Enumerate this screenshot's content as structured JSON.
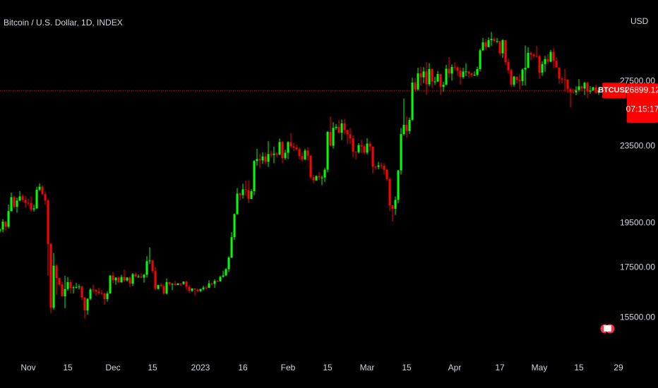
{
  "chart_data": {
    "type": "candlestick",
    "title": "Bitcoin / U.S. Dollar, 1D, INDEX",
    "currency": "USD",
    "symbol": "BTCUSD",
    "countdown": "07:15:17",
    "up_color": "#00ff00",
    "down_color": "#ff0000",
    "log_scale": true,
    "grid": false,
    "ylim": [
      14000,
      33500
    ],
    "yticks": [
      {
        "value": 15500,
        "label": "15500.00"
      },
      {
        "value": 17500,
        "label": "17500.00"
      },
      {
        "value": 19500,
        "label": "19500.00"
      },
      {
        "value": 23500,
        "label": "23500.00"
      },
      {
        "value": 27500,
        "label": "27500.00"
      }
    ],
    "xlim": [
      "2022-10-22",
      "2023-05-23"
    ],
    "xticks": [
      {
        "value": "2022-11-01",
        "label": "Nov"
      },
      {
        "value": "2022-11-15",
        "label": "15"
      },
      {
        "value": "2022-12-01",
        "label": "Dec"
      },
      {
        "value": "2022-12-15",
        "label": "15"
      },
      {
        "value": "2023-01-01",
        "label": "2023"
      },
      {
        "value": "2023-01-16",
        "label": "16"
      },
      {
        "value": "2023-02-01",
        "label": "Feb"
      },
      {
        "value": "2023-02-15",
        "label": "15"
      },
      {
        "value": "2023-03-01",
        "label": "Mar"
      },
      {
        "value": "2023-03-15",
        "label": "15"
      },
      {
        "value": "2023-04-01",
        "label": "Apr"
      },
      {
        "value": "2023-04-17",
        "label": "17"
      },
      {
        "value": "2023-05-01",
        "label": "May"
      },
      {
        "value": "2023-05-15",
        "label": "15"
      },
      {
        "value": "2023-05-29",
        "label": "29"
      }
    ],
    "x": [
      "2022-10-22",
      "2022-10-23",
      "2022-10-24",
      "2022-10-25",
      "2022-10-26",
      "2022-10-27",
      "2022-10-28",
      "2022-10-29",
      "2022-10-30",
      "2022-10-31",
      "2022-11-01",
      "2022-11-02",
      "2022-11-03",
      "2022-11-04",
      "2022-11-05",
      "2022-11-06",
      "2022-11-07",
      "2022-11-08",
      "2022-11-09",
      "2022-11-10",
      "2022-11-11",
      "2022-11-12",
      "2022-11-13",
      "2022-11-14",
      "2022-11-15",
      "2022-11-16",
      "2022-11-17",
      "2022-11-18",
      "2022-11-19",
      "2022-11-20",
      "2022-11-21",
      "2022-11-22",
      "2022-11-23",
      "2022-11-24",
      "2022-11-25",
      "2022-11-26",
      "2022-11-27",
      "2022-11-28",
      "2022-11-29",
      "2022-11-30",
      "2022-12-01",
      "2022-12-02",
      "2022-12-03",
      "2022-12-04",
      "2022-12-05",
      "2022-12-06",
      "2022-12-07",
      "2022-12-08",
      "2022-12-09",
      "2022-12-10",
      "2022-12-11",
      "2022-12-12",
      "2022-12-13",
      "2022-12-14",
      "2022-12-15",
      "2022-12-16",
      "2022-12-17",
      "2022-12-18",
      "2022-12-19",
      "2022-12-20",
      "2022-12-21",
      "2022-12-22",
      "2022-12-23",
      "2022-12-24",
      "2022-12-25",
      "2022-12-26",
      "2022-12-27",
      "2022-12-28",
      "2022-12-29",
      "2022-12-30",
      "2022-12-31",
      "2023-01-01",
      "2023-01-02",
      "2023-01-03",
      "2023-01-04",
      "2023-01-05",
      "2023-01-06",
      "2023-01-07",
      "2023-01-08",
      "2023-01-09",
      "2023-01-10",
      "2023-01-11",
      "2023-01-12",
      "2023-01-13",
      "2023-01-14",
      "2023-01-15",
      "2023-01-16",
      "2023-01-17",
      "2023-01-18",
      "2023-01-19",
      "2023-01-20",
      "2023-01-21",
      "2023-01-22",
      "2023-01-23",
      "2023-01-24",
      "2023-01-25",
      "2023-01-26",
      "2023-01-27",
      "2023-01-28",
      "2023-01-29",
      "2023-01-30",
      "2023-01-31",
      "2023-02-01",
      "2023-02-02",
      "2023-02-03",
      "2023-02-04",
      "2023-02-05",
      "2023-02-06",
      "2023-02-07",
      "2023-02-08",
      "2023-02-09",
      "2023-02-10",
      "2023-02-11",
      "2023-02-12",
      "2023-02-13",
      "2023-02-14",
      "2023-02-15",
      "2023-02-16",
      "2023-02-17",
      "2023-02-18",
      "2023-02-19",
      "2023-02-20",
      "2023-02-21",
      "2023-02-22",
      "2023-02-23",
      "2023-02-24",
      "2023-02-25",
      "2023-02-26",
      "2023-02-27",
      "2023-02-28",
      "2023-03-01",
      "2023-03-02",
      "2023-03-03",
      "2023-03-04",
      "2023-03-05",
      "2023-03-06",
      "2023-03-07",
      "2023-03-08",
      "2023-03-09",
      "2023-03-10",
      "2023-03-11",
      "2023-03-12",
      "2023-03-13",
      "2023-03-14",
      "2023-03-15",
      "2023-03-16",
      "2023-03-17",
      "2023-03-18",
      "2023-03-19",
      "2023-03-20",
      "2023-03-21",
      "2023-03-22",
      "2023-03-23",
      "2023-03-24",
      "2023-03-25",
      "2023-03-26",
      "2023-03-27",
      "2023-03-28",
      "2023-03-29",
      "2023-03-30",
      "2023-03-31",
      "2023-04-01",
      "2023-04-02",
      "2023-04-03",
      "2023-04-04",
      "2023-04-05",
      "2023-04-06",
      "2023-04-07",
      "2023-04-08",
      "2023-04-09",
      "2023-04-10",
      "2023-04-11",
      "2023-04-12",
      "2023-04-13",
      "2023-04-14",
      "2023-04-15",
      "2023-04-16",
      "2023-04-17",
      "2023-04-18",
      "2023-04-19",
      "2023-04-20",
      "2023-04-21",
      "2023-04-22",
      "2023-04-23",
      "2023-04-24",
      "2023-04-25",
      "2023-04-26",
      "2023-04-27",
      "2023-04-28",
      "2023-04-29",
      "2023-04-30",
      "2023-05-01",
      "2023-05-02",
      "2023-05-03",
      "2023-05-04",
      "2023-05-05",
      "2023-05-06",
      "2023-05-07",
      "2023-05-08",
      "2023-05-09",
      "2023-05-10",
      "2023-05-11",
      "2023-05-12",
      "2023-05-13",
      "2023-05-14",
      "2023-05-15",
      "2023-05-16",
      "2023-05-17",
      "2023-05-18",
      "2023-05-19",
      "2023-05-20",
      "2023-05-21",
      "2023-05-22"
    ],
    "open": [
      19160,
      19205,
      19570,
      19330,
      20080,
      20770,
      20290,
      20600,
      20810,
      20630,
      20490,
      20480,
      20160,
      20210,
      21150,
      21300,
      20920,
      20600,
      18540,
      15880,
      17590,
      17070,
      16810,
      16330,
      16620,
      16900,
      16660,
      16690,
      16700,
      16720,
      16280,
      15780,
      16230,
      16600,
      16590,
      16520,
      16460,
      16440,
      16220,
      16440,
      17170,
      16980,
      17090,
      16890,
      17110,
      16970,
      17090,
      16840,
      17230,
      17130,
      17130,
      17090,
      17210,
      17780,
      17810,
      17360,
      16630,
      16780,
      16740,
      16440,
      16900,
      16820,
      16830,
      16780,
      16840,
      16830,
      16920,
      16710,
      16550,
      16640,
      16600,
      16540,
      16620,
      16680,
      16670,
      16850,
      16830,
      16950,
      16940,
      17120,
      17180,
      17440,
      17940,
      18850,
      19930,
      20950,
      20870,
      21170,
      21130,
      20680,
      21070,
      22670,
      22780,
      22710,
      22920,
      22630,
      23060,
      23010,
      23080,
      23030,
      23740,
      22830,
      23130,
      23730,
      23490,
      23430,
      23330,
      22940,
      22760,
      23250,
      22960,
      21800,
      21630,
      21860,
      21780,
      21780,
      22200,
      24330,
      23530,
      24570,
      24630,
      24280,
      24840,
      24440,
      24190,
      23950,
      23200,
      23160,
      23560,
      23490,
      23140,
      23650,
      23480,
      22360,
      22350,
      22430,
      22410,
      22200,
      21700,
      20360,
      20190,
      20630,
      22160,
      24200,
      24750,
      24380,
      25050,
      27420,
      26970,
      28040,
      27770,
      28170,
      27310,
      28330,
      27490,
      27490,
      27990,
      27140,
      27270,
      28360,
      28030,
      28480,
      28450,
      28220,
      27790,
      28170,
      28170,
      28030,
      27920,
      27940,
      28330,
      29650,
      30230,
      29890,
      30400,
      30490,
      30320,
      30320,
      29440,
      30390,
      28820,
      28250,
      27280,
      27820,
      27590,
      27520,
      28300,
      28420,
      29470,
      29340,
      29250,
      29230,
      28090,
      28680,
      29030,
      28850,
      29540,
      28900,
      28450,
      27690,
      27630,
      27620,
      26990,
      26800,
      26780,
      26930,
      27170,
      27030,
      27400,
      26830,
      26890,
      27110,
      26750
    ],
    "high": [
      19250,
      19690,
      19600,
      20400,
      21000,
      20850,
      20740,
      21080,
      20920,
      20830,
      20690,
      20790,
      20390,
      21300,
      21470,
      21370,
      21060,
      20670,
      18590,
      18140,
      17650,
      17090,
      16920,
      17160,
      17110,
      17000,
      16760,
      16870,
      16810,
      16750,
      16300,
      16250,
      16660,
      16790,
      16610,
      16680,
      16590,
      16480,
      16530,
      17200,
      17320,
      17100,
      17140,
      17200,
      17420,
      17110,
      17130,
      17280,
      17300,
      17220,
      17270,
      17240,
      18000,
      18390,
      17850,
      17530,
      16800,
      16860,
      16820,
      17050,
      16920,
      16860,
      16950,
      16870,
      16860,
      16940,
      16960,
      16780,
      16660,
      16650,
      16640,
      16630,
      16760,
      16770,
      16980,
      16880,
      17020,
      16970,
      17170,
      17380,
      17490,
      17990,
      19080,
      19970,
      21230,
      20990,
      21460,
      21630,
      21640,
      21170,
      22730,
      23350,
      23070,
      23160,
      23130,
      23790,
      23250,
      23480,
      23160,
      23940,
      23790,
      23300,
      23790,
      24250,
      23700,
      23580,
      23430,
      23150,
      23350,
      23440,
      23000,
      21930,
      21900,
      22070,
      21880,
      22300,
      24380,
      25250,
      24900,
      24800,
      25030,
      25070,
      25110,
      24470,
      24560,
      24120,
      23200,
      23670,
      23880,
      23600,
      23960,
      23780,
      23480,
      22420,
      22620,
      22580,
      22540,
      22260,
      21810,
      20370,
      20800,
      22180,
      24560,
      26390,
      25260,
      25190,
      27740,
      27730,
      28420,
      28500,
      28460,
      28810,
      28750,
      28380,
      27800,
      28200,
      28030,
      27480,
      28630,
      29170,
      28650,
      28800,
      28520,
      28460,
      28430,
      28730,
      28190,
      28110,
      28170,
      28500,
      29770,
      30550,
      30500,
      30610,
      31000,
      30610,
      30550,
      30320,
      30480,
      30410,
      29080,
      28370,
      27880,
      27820,
      28010,
      28380,
      30000,
      29880,
      29580,
      29440,
      29970,
      29330,
      28880,
      29260,
      29370,
      29680,
      29820,
      29170,
      28450,
      27820,
      28330,
      27640,
      27060,
      27020,
      27180,
      27650,
      27250,
      27480,
      27480,
      27180,
      27150,
      27270,
      27050
    ],
    "low": [
      19070,
      19070,
      19160,
      19250,
      20060,
      20210,
      20000,
      20560,
      20520,
      20240,
      20350,
      20050,
      20050,
      20180,
      21080,
      20900,
      20400,
      17170,
      15680,
      15810,
      16400,
      16750,
      16330,
      15870,
      16550,
      16440,
      16440,
      16640,
      16600,
      16180,
      15480,
      15620,
      16180,
      16480,
      16340,
      16400,
      16400,
      16000,
      16120,
      16440,
      16870,
      16790,
      16870,
      16880,
      16900,
      16920,
      16690,
      16740,
      17090,
      17090,
      17070,
      16880,
      17090,
      17660,
      17280,
      16580,
      16590,
      16700,
      16400,
      16400,
      16760,
      16580,
      16770,
      16780,
      16740,
      16790,
      16590,
      16470,
      16500,
      16360,
      16490,
      16500,
      16560,
      16600,
      16660,
      16760,
      16670,
      16910,
      16920,
      17100,
      17150,
      17320,
      17920,
      18720,
      19900,
      20600,
      20700,
      20860,
      20460,
      20660,
      20870,
      22420,
      22300,
      22510,
      22480,
      22350,
      22850,
      22550,
      22890,
      23000,
      22560,
      22740,
      22780,
      23400,
      23230,
      23260,
      22760,
      22650,
      22720,
      22700,
      21710,
      21490,
      21600,
      21650,
      21380,
      21550,
      22060,
      23520,
      23360,
      24450,
      24240,
      23850,
      24180,
      23610,
      23630,
      22880,
      22760,
      23080,
      23120,
      23050,
      23030,
      23220,
      21990,
      22200,
      22220,
      22260,
      21950,
      21600,
      20080,
      19570,
      19890,
      20460,
      21930,
      24110,
      23990,
      24210,
      25000,
      26800,
      26880,
      27210,
      27380,
      26630,
      27180,
      27070,
      27260,
      27450,
      26620,
      26810,
      27260,
      27740,
      27550,
      28250,
      27880,
      27300,
      27670,
      27850,
      27750,
      27780,
      27880,
      27830,
      28180,
      29620,
      29670,
      29880,
      29980,
      30230,
      30170,
      29280,
      29110,
      28600,
      28010,
      27140,
      27150,
      27360,
      26980,
      27220,
      27240,
      28390,
      28920,
      29080,
      29140,
      27690,
      27870,
      28150,
      28690,
      28800,
      28400,
      28450,
      27340,
      27380,
      26800,
      26740,
      25810,
      26710,
      26600,
      26810,
      26870,
      26610,
      26410,
      26690,
      26860,
      26690,
      26620
    ],
    "close": [
      19205,
      19570,
      19330,
      20080,
      20770,
      20290,
      20600,
      20810,
      20630,
      20490,
      20480,
      20160,
      20210,
      21150,
      21300,
      20920,
      20600,
      18540,
      15880,
      17590,
      17070,
      16810,
      16330,
      16620,
      16900,
      16660,
      16690,
      16700,
      16720,
      16280,
      15780,
      16230,
      16600,
      16590,
      16520,
      16460,
      16440,
      16220,
      16440,
      17170,
      16980,
      17090,
      16890,
      17110,
      16970,
      17090,
      16840,
      17230,
      17130,
      17130,
      17090,
      17210,
      17780,
      17810,
      17360,
      16630,
      16780,
      16740,
      16440,
      16900,
      16820,
      16830,
      16780,
      16840,
      16830,
      16920,
      16710,
      16550,
      16640,
      16600,
      16540,
      16620,
      16680,
      16670,
      16850,
      16830,
      16950,
      16940,
      17120,
      17180,
      17440,
      17940,
      18850,
      19930,
      20950,
      20870,
      21170,
      21130,
      20680,
      21070,
      22670,
      22780,
      22710,
      22920,
      22630,
      23060,
      23010,
      23080,
      23030,
      23740,
      22830,
      23130,
      23730,
      23490,
      23430,
      23330,
      22940,
      22760,
      23250,
      22960,
      21800,
      21630,
      21860,
      21780,
      21780,
      22200,
      24330,
      23530,
      24570,
      24630,
      24280,
      24840,
      24440,
      24190,
      23950,
      23200,
      23160,
      23560,
      23490,
      23140,
      23650,
      23480,
      22360,
      22350,
      22430,
      22410,
      22200,
      21700,
      20360,
      20190,
      20630,
      22160,
      24200,
      24750,
      24380,
      25050,
      27420,
      26970,
      28040,
      27770,
      28170,
      27310,
      28330,
      27490,
      27490,
      27990,
      27140,
      27270,
      28360,
      28030,
      28480,
      28450,
      28220,
      27790,
      28170,
      28170,
      28030,
      27920,
      27940,
      28330,
      29650,
      30230,
      29890,
      30400,
      30490,
      30320,
      30320,
      29440,
      30390,
      28820,
      28250,
      27280,
      27820,
      27590,
      27520,
      28300,
      28420,
      29470,
      29340,
      29250,
      29230,
      28090,
      28680,
      29030,
      28850,
      29540,
      28900,
      28450,
      27690,
      27630,
      27620,
      26990,
      26800,
      26780,
      26930,
      27170,
      27030,
      27400,
      26830,
      26890,
      27110,
      26750,
      26899.12
    ]
  }
}
